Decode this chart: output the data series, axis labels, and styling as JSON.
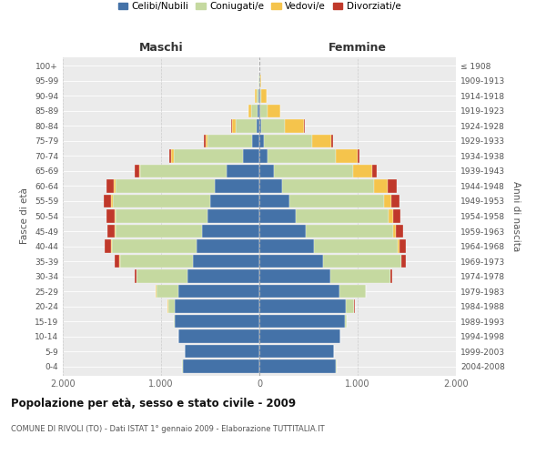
{
  "age_groups": [
    "0-4",
    "5-9",
    "10-14",
    "15-19",
    "20-24",
    "25-29",
    "30-34",
    "35-39",
    "40-44",
    "45-49",
    "50-54",
    "55-59",
    "60-64",
    "65-69",
    "70-74",
    "75-79",
    "80-84",
    "85-89",
    "90-94",
    "95-99",
    "100+"
  ],
  "birth_years": [
    "2004-2008",
    "1999-2003",
    "1994-1998",
    "1989-1993",
    "1984-1988",
    "1979-1983",
    "1974-1978",
    "1969-1973",
    "1964-1968",
    "1959-1963",
    "1954-1958",
    "1949-1953",
    "1944-1948",
    "1939-1943",
    "1934-1938",
    "1929-1933",
    "1924-1928",
    "1919-1923",
    "1914-1918",
    "1909-1913",
    "≤ 1908"
  ],
  "males": {
    "celibi": [
      780,
      760,
      820,
      860,
      860,
      820,
      730,
      680,
      640,
      580,
      530,
      500,
      450,
      330,
      170,
      75,
      30,
      15,
      8,
      4,
      1
    ],
    "coniugati": [
      3,
      3,
      4,
      12,
      70,
      230,
      520,
      740,
      860,
      880,
      930,
      990,
      1010,
      880,
      700,
      450,
      210,
      70,
      22,
      6,
      1
    ],
    "vedovi": [
      0,
      0,
      0,
      0,
      3,
      3,
      3,
      3,
      5,
      8,
      12,
      15,
      20,
      15,
      25,
      25,
      35,
      25,
      15,
      3,
      1
    ],
    "divorziati": [
      0,
      0,
      0,
      3,
      3,
      3,
      15,
      45,
      65,
      75,
      85,
      75,
      80,
      45,
      18,
      15,
      8,
      3,
      0,
      0,
      0
    ]
  },
  "females": {
    "nubili": [
      780,
      760,
      820,
      870,
      875,
      815,
      720,
      645,
      555,
      470,
      370,
      305,
      235,
      145,
      85,
      50,
      22,
      12,
      5,
      3,
      1
    ],
    "coniugate": [
      3,
      3,
      4,
      20,
      88,
      265,
      610,
      795,
      855,
      890,
      945,
      965,
      930,
      810,
      690,
      490,
      240,
      70,
      15,
      3,
      0
    ],
    "vedove": [
      0,
      0,
      0,
      0,
      3,
      3,
      3,
      8,
      15,
      25,
      45,
      75,
      145,
      195,
      225,
      195,
      195,
      130,
      50,
      10,
      1
    ],
    "divorziate": [
      0,
      0,
      0,
      0,
      3,
      3,
      15,
      45,
      65,
      75,
      75,
      85,
      85,
      45,
      18,
      12,
      8,
      3,
      0,
      0,
      0
    ]
  },
  "colors": {
    "celibi_nubili": "#4472a8",
    "coniugati_e": "#c5d9a0",
    "vedovi_e": "#f5c44c",
    "divorziati_e": "#c0392b"
  },
  "title": "Popolazione per età, sesso e stato civile - 2009",
  "subtitle": "COMUNE DI RIVOLI (TO) - Dati ISTAT 1° gennaio 2009 - Elaborazione TUTTITALIA.IT",
  "xlabel_left": "Maschi",
  "xlabel_right": "Femmine",
  "ylabel_left": "Fasce di età",
  "ylabel_right": "Anni di nascita",
  "xlim": 2000,
  "xtick_labels": [
    "2.000",
    "1.000",
    "0",
    "1.000",
    "2.000"
  ],
  "background_color": "#ffffff",
  "plot_bg_color": "#ebebeb",
  "legend_items": [
    "Celibi/Nubili",
    "Coniugati/e",
    "Vedovi/e",
    "Divorziati/e"
  ]
}
